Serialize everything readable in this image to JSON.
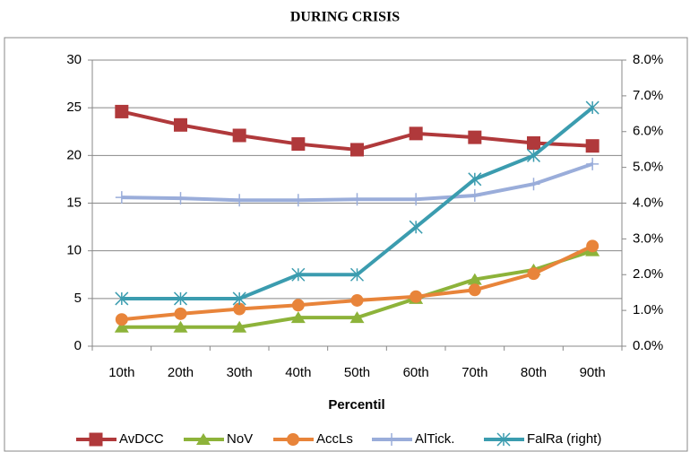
{
  "chart_data": {
    "type": "line",
    "title": "DURING CRISIS",
    "x_label": "Percentil",
    "categories": [
      "10th",
      "20th",
      "30th",
      "40th",
      "50th",
      "60th",
      "70th",
      "80th",
      "90th"
    ],
    "series": [
      {
        "name": "AvDCC",
        "color": "#b0393b",
        "marker": "square",
        "values": [
          24.6,
          23.2,
          22.1,
          21.2,
          20.6,
          22.3,
          21.9,
          21.3,
          21.0
        ]
      },
      {
        "name": "NoV",
        "color": "#8db33a",
        "marker": "triangle",
        "values": [
          2,
          2,
          2,
          3,
          3,
          5,
          7,
          8,
          10
        ]
      },
      {
        "name": "AccLs",
        "color": "#e8843a",
        "marker": "circle",
        "values": [
          2.8,
          3.4,
          3.9,
          4.3,
          4.8,
          5.2,
          5.9,
          7.6,
          10.5
        ]
      },
      {
        "name": "AlTick.",
        "color": "#9aadda",
        "marker": "plus",
        "values": [
          15.6,
          15.5,
          15.3,
          15.3,
          15.4,
          15.4,
          15.8,
          17.0,
          19.1
        ]
      },
      {
        "name": "FalRa (right)",
        "color": "#3b9caf",
        "marker": "star",
        "axis": "y2",
        "values": [
          1.33,
          1.33,
          1.33,
          2.0,
          2.0,
          3.33,
          4.67,
          5.33,
          6.67
        ]
      }
    ],
    "ylim": [
      0,
      30
    ],
    "yticks": [
      0,
      5,
      10,
      15,
      20,
      25,
      30
    ],
    "y2lim": [
      0,
      8
    ],
    "y2ticks": [
      {
        "value": 0,
        "label": "0.0%"
      },
      {
        "value": 1,
        "label": "1.0%"
      },
      {
        "value": 2,
        "label": "2.0%"
      },
      {
        "value": 3,
        "label": "3.0%"
      },
      {
        "value": 4,
        "label": "4.0%"
      },
      {
        "value": 5,
        "label": "5.0%"
      },
      {
        "value": 6,
        "label": "6.0%"
      },
      {
        "value": 7,
        "label": "7.0%"
      },
      {
        "value": 8,
        "label": "8.0%"
      }
    ],
    "grid": true,
    "legend": "bottom"
  }
}
